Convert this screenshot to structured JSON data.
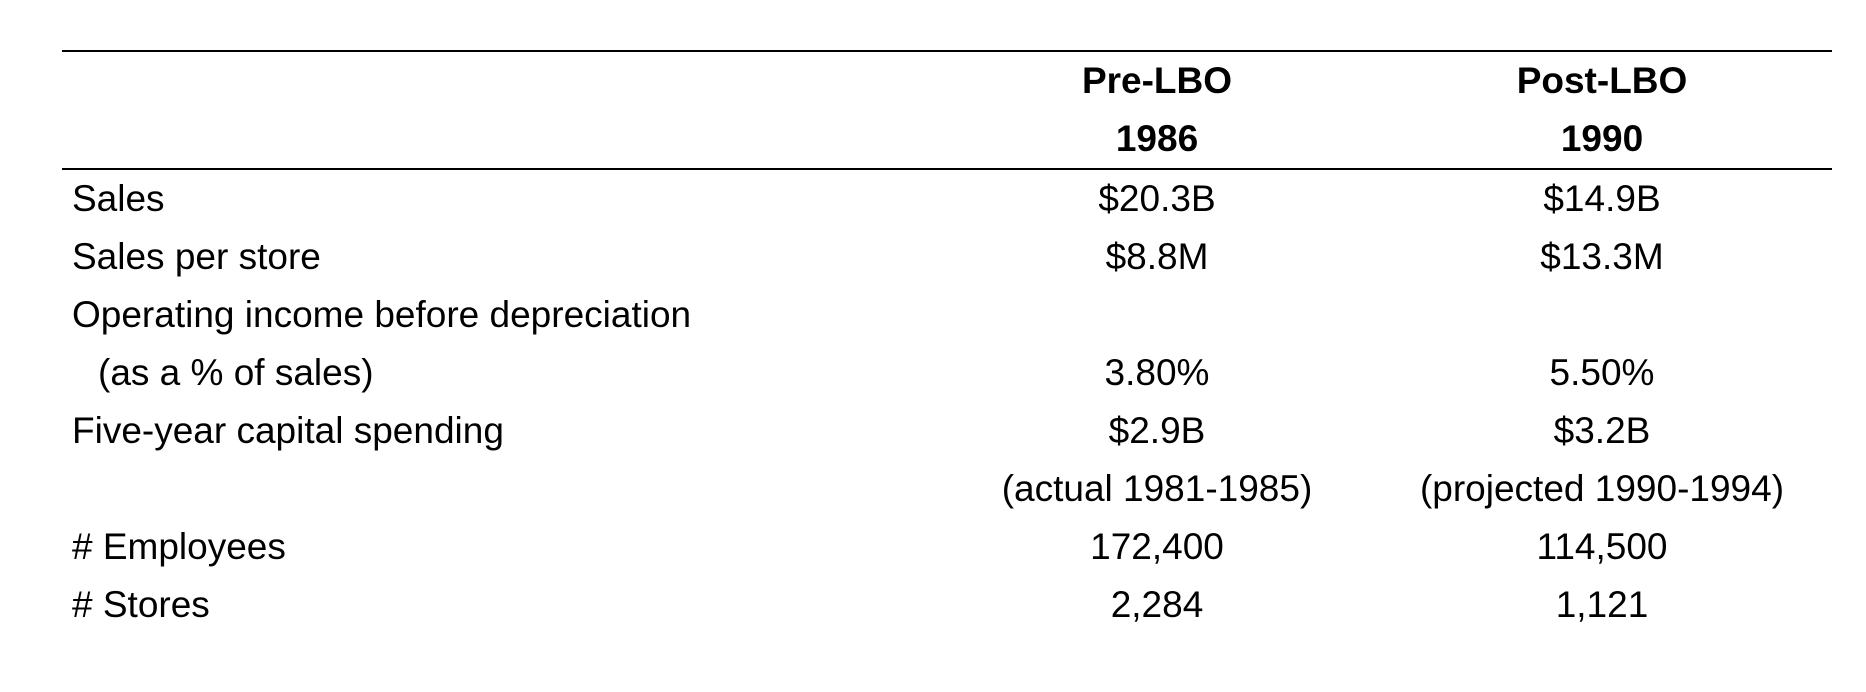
{
  "table": {
    "headers": {
      "pre": {
        "line1": "Pre-LBO",
        "line2": "1986"
      },
      "post": {
        "line1": "Post-LBO",
        "line2": "1990"
      }
    },
    "rows": [
      {
        "label": "Sales",
        "pre": "$20.3B",
        "post": "$14.9B"
      },
      {
        "label": "Sales per store",
        "pre": "$8.8M",
        "post": "$13.3M"
      },
      {
        "label": "Operating income before depreciation",
        "pre": "",
        "post": ""
      },
      {
        "label": "(as a % of sales)",
        "pre": "3.80%",
        "post": "5.50%"
      },
      {
        "label": "Five-year capital spending",
        "pre": "$2.9B",
        "post": "$3.2B"
      },
      {
        "label": "",
        "pre": "(actual 1981-1985)",
        "post": "(projected 1990-1994)"
      },
      {
        "label": "# Employees",
        "pre": "172,400",
        "post": "114,500"
      },
      {
        "label": "# Stores",
        "pre": "2,284",
        "post": "1,121"
      }
    ]
  }
}
